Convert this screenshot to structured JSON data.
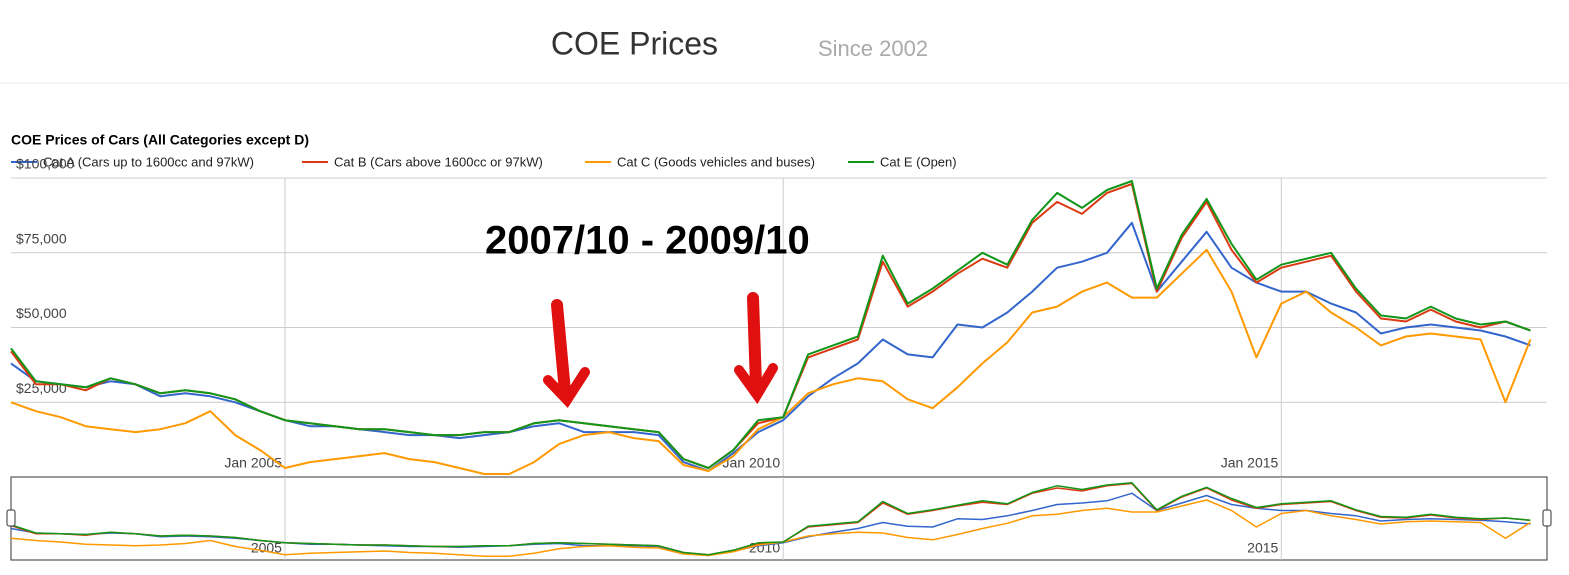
{
  "header": {
    "title": "COE Prices",
    "subtitle": "Since 2002"
  },
  "chart_data": {
    "type": "line",
    "title": "COE Prices of Cars (All Categories except D)",
    "annotation": "2007/10 - 2009/10",
    "x": [
      "2002-04",
      "2002-07",
      "2002-10",
      "2003-01",
      "2003-04",
      "2003-07",
      "2003-10",
      "2004-01",
      "2004-04",
      "2004-07",
      "2004-10",
      "2005-01",
      "2005-04",
      "2005-07",
      "2005-10",
      "2006-01",
      "2006-04",
      "2006-07",
      "2006-10",
      "2007-01",
      "2007-04",
      "2007-07",
      "2007-10",
      "2008-01",
      "2008-04",
      "2008-07",
      "2008-10",
      "2009-01",
      "2009-04",
      "2009-07",
      "2009-10",
      "2010-01",
      "2010-04",
      "2010-07",
      "2010-10",
      "2011-01",
      "2011-04",
      "2011-07",
      "2011-10",
      "2012-01",
      "2012-04",
      "2012-07",
      "2012-10",
      "2013-01",
      "2013-04",
      "2013-07",
      "2013-10",
      "2014-01",
      "2014-04",
      "2014-07",
      "2014-10",
      "2015-01",
      "2015-04",
      "2015-07",
      "2015-10",
      "2016-01",
      "2016-04",
      "2016-07",
      "2016-10",
      "2017-01",
      "2017-04",
      "2017-07"
    ],
    "series": [
      {
        "name": "Cat A (Cars up to 1600cc and 97kW)",
        "color": "#3366cc",
        "values": [
          38000,
          32000,
          31000,
          30000,
          32000,
          31000,
          27000,
          28000,
          27000,
          25000,
          22000,
          19000,
          17000,
          17000,
          16000,
          15000,
          14000,
          14000,
          13000,
          14000,
          15000,
          17000,
          18000,
          15000,
          15000,
          15000,
          14000,
          5000,
          2000,
          8000,
          15000,
          19000,
          27000,
          33000,
          38000,
          46000,
          41000,
          40000,
          51000,
          50000,
          55000,
          62000,
          70000,
          72000,
          75000,
          85000,
          62000,
          72000,
          82000,
          70000,
          65000,
          62000,
          62000,
          58000,
          55000,
          48000,
          50000,
          51000,
          50000,
          49000,
          47000,
          44000
        ]
      },
      {
        "name": "Cat B (Cars above 1600cc or 97kW)",
        "color": "#dc3912",
        "values": [
          42000,
          31000,
          31000,
          29000,
          33000,
          31000,
          28000,
          29000,
          28000,
          26000,
          22000,
          19000,
          18000,
          17000,
          16000,
          16000,
          15000,
          14000,
          14000,
          15000,
          15000,
          18000,
          19000,
          18000,
          17000,
          16000,
          15000,
          6000,
          3000,
          9000,
          18000,
          20000,
          40000,
          43000,
          46000,
          72000,
          57000,
          62000,
          68000,
          73000,
          70000,
          85000,
          92000,
          88000,
          95000,
          98000,
          62000,
          80000,
          92000,
          76000,
          65000,
          70000,
          72000,
          74000,
          62000,
          53000,
          52000,
          56000,
          52000,
          50000,
          52000,
          49000
        ]
      },
      {
        "name": "Cat C (Goods vehicles and buses)",
        "color": "#ff9900",
        "values": [
          25000,
          22000,
          20000,
          17000,
          16000,
          15000,
          16000,
          18000,
          22000,
          14000,
          9000,
          3000,
          5000,
          6000,
          7000,
          8000,
          6000,
          5000,
          3000,
          1000,
          1000,
          5000,
          11000,
          14000,
          15000,
          13000,
          12000,
          4000,
          2000,
          7000,
          16000,
          20000,
          28000,
          31000,
          33000,
          32000,
          26000,
          23000,
          30000,
          38000,
          45000,
          55000,
          57000,
          62000,
          65000,
          60000,
          60000,
          68000,
          76000,
          62000,
          40000,
          58000,
          62000,
          55000,
          50000,
          44000,
          47000,
          48000,
          47000,
          46000,
          25000,
          46000
        ]
      },
      {
        "name": "Cat E (Open)",
        "color": "#109618",
        "values": [
          43000,
          32000,
          31000,
          30000,
          33000,
          31000,
          28000,
          29000,
          28000,
          26000,
          22000,
          19000,
          18000,
          17000,
          16000,
          16000,
          15000,
          14000,
          14000,
          15000,
          15000,
          18000,
          19000,
          18000,
          17000,
          16000,
          15000,
          6000,
          3000,
          9000,
          19000,
          20000,
          41000,
          44000,
          47000,
          74000,
          58000,
          63000,
          69000,
          75000,
          71000,
          86000,
          95000,
          90000,
          96000,
          99000,
          63000,
          81000,
          93000,
          78000,
          66000,
          71000,
          73000,
          75000,
          63000,
          54000,
          53000,
          57000,
          53000,
          51000,
          52000,
          49000
        ]
      }
    ],
    "xlim": [
      "2002-04",
      "2017-09"
    ],
    "xticks": [
      {
        "value": "2005-01",
        "label": "Jan 2005"
      },
      {
        "value": "2010-01",
        "label": "Jan 2010"
      },
      {
        "value": "2015-01",
        "label": "Jan 2015"
      }
    ],
    "ylim": [
      0,
      100000
    ],
    "yticks": [
      {
        "value": 25000,
        "label": "$25,000"
      },
      {
        "value": 50000,
        "label": "$50,000"
      },
      {
        "value": 75000,
        "label": "$75,000"
      },
      {
        "value": 100000,
        "label": "$100,000"
      }
    ],
    "grid": true,
    "legend": "top",
    "navigator": {
      "ticks": [
        {
          "value": "2005-01",
          "label": "2005"
        },
        {
          "value": "2010-01",
          "label": "2010"
        },
        {
          "value": "2015-01",
          "label": "2015"
        }
      ]
    }
  }
}
